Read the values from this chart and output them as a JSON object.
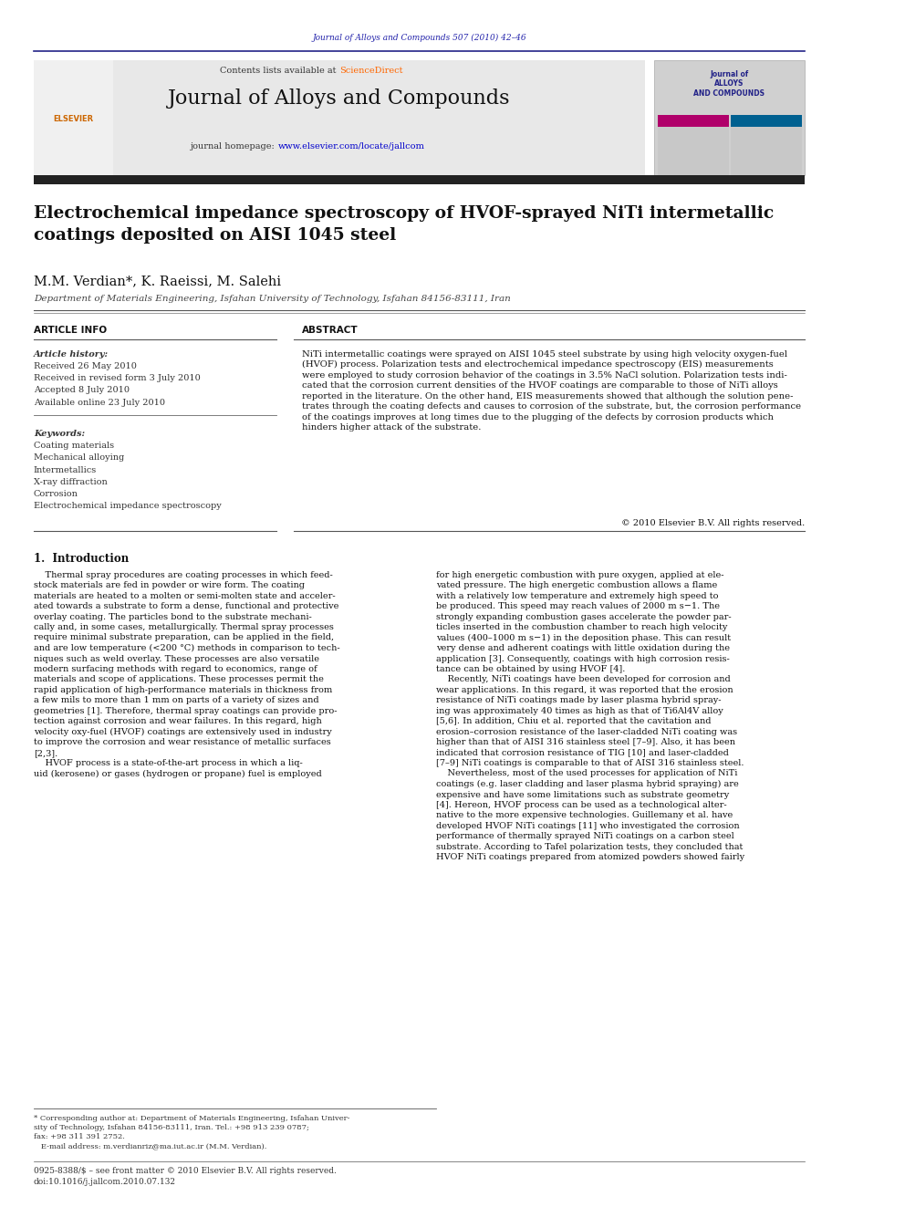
{
  "page_width": 9.92,
  "page_height": 13.23,
  "background_color": "#ffffff",
  "journal_ref_text": "Journal of Alloys and Compounds 507 (2010) 42–46",
  "journal_ref_color": "#2222aa",
  "journal_title": "Journal of Alloys and Compounds",
  "contents_text": "Contents lists available at ",
  "sciencedirect_text": "ScienceDirect",
  "sciencedirect_color": "#ff6600",
  "homepage_text": "journal homepage: ",
  "homepage_url": "www.elsevier.com/locate/jallcom",
  "homepage_url_color": "#0000cc",
  "header_bg": "#e8e8e8",
  "paper_title": "Electrochemical impedance spectroscopy of HVOF-sprayed NiTi intermetallic\ncoatings deposited on AISI 1045 steel",
  "authors": "M.M. Verdian*, K. Raeissi, M. Salehi",
  "affiliation": "Department of Materials Engineering, Isfahan University of Technology, Isfahan 84156-83111, Iran",
  "article_info_header": "ARTICLE INFO",
  "abstract_header": "ABSTRACT",
  "article_history_label": "Article history:",
  "article_history_lines": [
    "Received 26 May 2010",
    "Received in revised form 3 July 2010",
    "Accepted 8 July 2010",
    "Available online 23 July 2010"
  ],
  "keywords_label": "Keywords:",
  "keywords_lines": [
    "Coating materials",
    "Mechanical alloying",
    "Intermetallics",
    "X-ray diffraction",
    "Corrosion",
    "Electrochemical impedance spectroscopy"
  ],
  "abstract_text": "NiTi intermetallic coatings were sprayed on AISI 1045 steel substrate by using high velocity oxygen-fuel\n(HVOF) process. Polarization tests and electrochemical impedance spectroscopy (EIS) measurements\nwere employed to study corrosion behavior of the coatings in 3.5% NaCl solution. Polarization tests indi-\ncated that the corrosion current densities of the HVOF coatings are comparable to those of NiTi alloys\nreported in the literature. On the other hand, EIS measurements showed that although the solution pene-\ntrates through the coating defects and causes to corrosion of the substrate, but, the corrosion performance\nof the coatings improves at long times due to the plugging of the defects by corrosion products which\nhinders higher attack of the substrate.",
  "copyright_text": "© 2010 Elsevier B.V. All rights reserved.",
  "section1_title": "1.  Introduction",
  "intro_col1_text": "    Thermal spray procedures are coating processes in which feed-\nstock materials are fed in powder or wire form. The coating\nmaterials are heated to a molten or semi-molten state and acceler-\nated towards a substrate to form a dense, functional and protective\noverlay coating. The particles bond to the substrate mechani-\ncally and, in some cases, metallurgically. Thermal spray processes\nrequire minimal substrate preparation, can be applied in the field,\nand are low temperature (<200 °C) methods in comparison to tech-\nniques such as weld overlay. These processes are also versatile\nmodern surfacing methods with regard to economics, range of\nmaterials and scope of applications. These processes permit the\nrapid application of high-performance materials in thickness from\na few mils to more than 1 mm on parts of a variety of sizes and\ngeometries [1]. Therefore, thermal spray coatings can provide pro-\ntection against corrosion and wear failures. In this regard, high\nvelocity oxy-fuel (HVOF) coatings are extensively used in industry\nto improve the corrosion and wear resistance of metallic surfaces\n[2,3].\n    HVOF process is a state-of-the-art process in which a liq-\nuid (kerosene) or gases (hydrogen or propane) fuel is employed",
  "intro_col2_text": "for high energetic combustion with pure oxygen, applied at ele-\nvated pressure. The high energetic combustion allows a flame\nwith a relatively low temperature and extremely high speed to\nbe produced. This speed may reach values of 2000 m s−1. The\nstrongly expanding combustion gases accelerate the powder par-\nticles inserted in the combustion chamber to reach high velocity\nvalues (400–1000 m s−1) in the deposition phase. This can result\nvery dense and adherent coatings with little oxidation during the\napplication [3]. Consequently, coatings with high corrosion resis-\ntance can be obtained by using HVOF [4].\n    Recently, NiTi coatings have been developed for corrosion and\nwear applications. In this regard, it was reported that the erosion\nresistance of NiTi coatings made by laser plasma hybrid spray-\ning was approximately 40 times as high as that of Ti6Al4V alloy\n[5,6]. In addition, Chiu et al. reported that the cavitation and\nerosion–corrosion resistance of the laser-cladded NiTi coating was\nhigher than that of AISI 316 stainless steel [7–9]. Also, it has been\nindicated that corrosion resistance of TIG [10] and laser-cladded\n[7–9] NiTi coatings is comparable to that of AISI 316 stainless steel.\n    Nevertheless, most of the used processes for application of NiTi\ncoatings (e.g. laser cladding and laser plasma hybrid spraying) are\nexpensive and have some limitations such as substrate geometry\n[4]. Hereon, HVOF process can be used as a technological alter-\nnative to the more expensive technologies. Guillemany et al. have\ndeveloped HVOF NiTi coatings [11] who investigated the corrosion\nperformance of thermally sprayed NiTi coatings on a carbon steel\nsubstrate. According to Tafel polarization tests, they concluded that\nHVOF NiTi coatings prepared from atomized powders showed fairly",
  "footnote_text": "* Corresponding author at: Department of Materials Engineering, Isfahan Univer-\nsity of Technology, Isfahan 84156-83111, Iran. Tel.: +98 913 239 0787;\nfax: +98 311 391 2752.\n   E-mail address: m.verdianriz@ma.iut.ac.ir (M.M. Verdian).",
  "bottom_text": "0925-8388/$ – see front matter © 2010 Elsevier B.V. All rights reserved.\ndoi:10.1016/j.jallcom.2010.07.132"
}
